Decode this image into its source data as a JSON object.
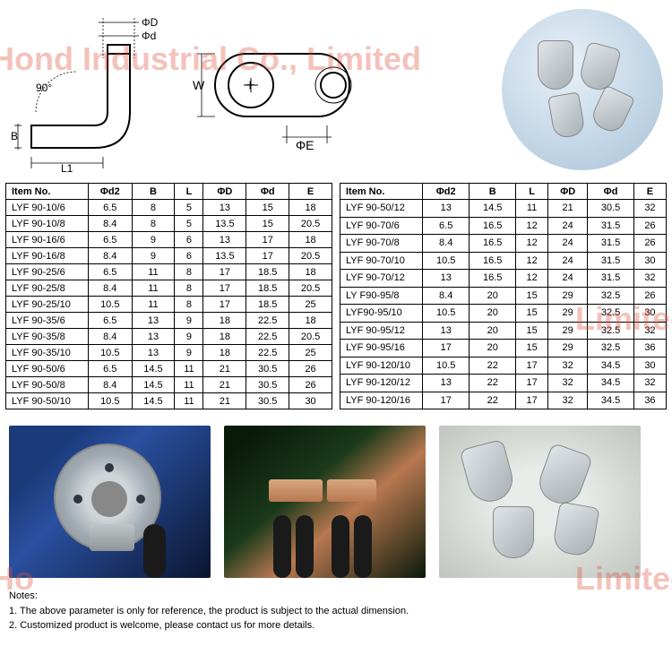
{
  "watermark": "Hond Industrial Co., Limited",
  "diagrams": {
    "labels": {
      "phi_D": "ΦD",
      "phi_d": "Φd",
      "angle": "90°",
      "B": "B",
      "L1": "L1",
      "W": "W",
      "phi_E": "ΦE",
      "plus": "+"
    },
    "stroke": "#000000",
    "dim_stroke": "#000000"
  },
  "table_headers": [
    "Item No.",
    "Φd2",
    "B",
    "L",
    "ΦD",
    "Φd",
    "E"
  ],
  "table_left": [
    [
      "LYF 90-10/6",
      "6.5",
      "8",
      "5",
      "13",
      "15",
      "18"
    ],
    [
      "LYF 90-10/8",
      "8.4",
      "8",
      "5",
      "13.5",
      "15",
      "20.5"
    ],
    [
      "LYF 90-16/6",
      "6.5",
      "9",
      "6",
      "13",
      "17",
      "18"
    ],
    [
      "LYF 90-16/8",
      "8.4",
      "9",
      "6",
      "13.5",
      "17",
      "20.5"
    ],
    [
      "LYF 90-25/6",
      "6.5",
      "11",
      "8",
      "17",
      "18.5",
      "18"
    ],
    [
      "LYF 90-25/8",
      "8.4",
      "11",
      "8",
      "17",
      "18.5",
      "20.5"
    ],
    [
      "LYF 90-25/10",
      "10.5",
      "11",
      "8",
      "17",
      "18.5",
      "25"
    ],
    [
      "LYF 90-35/6",
      "6.5",
      "13",
      "9",
      "18",
      "22.5",
      "18"
    ],
    [
      "LYF 90-35/8",
      "8.4",
      "13",
      "9",
      "18",
      "22.5",
      "20.5"
    ],
    [
      "LYF 90-35/10",
      "10.5",
      "13",
      "9",
      "18",
      "22.5",
      "25"
    ],
    [
      "LYF 90-50/6",
      "6.5",
      "14.5",
      "11",
      "21",
      "30.5",
      "26"
    ],
    [
      "LYF 90-50/8",
      "8.4",
      "14.5",
      "11",
      "21",
      "30.5",
      "26"
    ],
    [
      "LYF 90-50/10",
      "10.5",
      "14.5",
      "11",
      "21",
      "30.5",
      "30"
    ]
  ],
  "table_right": [
    [
      "LYF 90-50/12",
      "13",
      "14.5",
      "11",
      "21",
      "30.5",
      "32"
    ],
    [
      "LYF 90-70/6",
      "6.5",
      "16.5",
      "12",
      "24",
      "31.5",
      "26"
    ],
    [
      "LYF 90-70/8",
      "8.4",
      "16.5",
      "12",
      "24",
      "31.5",
      "26"
    ],
    [
      "LYF 90-70/10",
      "10.5",
      "16.5",
      "12",
      "24",
      "31.5",
      "30"
    ],
    [
      "LYF 90-70/12",
      "13",
      "16.5",
      "12",
      "24",
      "31.5",
      "32"
    ],
    [
      "LY F90-95/8",
      "8.4",
      "20",
      "15",
      "29",
      "32.5",
      "26"
    ],
    [
      "LYF90-95/10",
      "10.5",
      "20",
      "15",
      "29",
      "32.5",
      "30"
    ],
    [
      "LYF 90-95/12",
      "13",
      "20",
      "15",
      "29",
      "32.5",
      "32"
    ],
    [
      "LYF 90-95/16",
      "17",
      "20",
      "15",
      "29",
      "32.5",
      "36"
    ],
    [
      "LYF 90-120/10",
      "10.5",
      "22",
      "17",
      "32",
      "34.5",
      "30"
    ],
    [
      "LYF 90-120/12",
      "13",
      "22",
      "17",
      "32",
      "34.5",
      "32"
    ],
    [
      "LYF 90-120/16",
      "17",
      "22",
      "17",
      "32",
      "34.5",
      "36"
    ]
  ],
  "notes": {
    "title": "Notes:",
    "line1": "1. The above parameter is only for reference, the product is subject to the actual dimension.",
    "line2": "2. Customized product is welcome, please contact us for more details."
  }
}
